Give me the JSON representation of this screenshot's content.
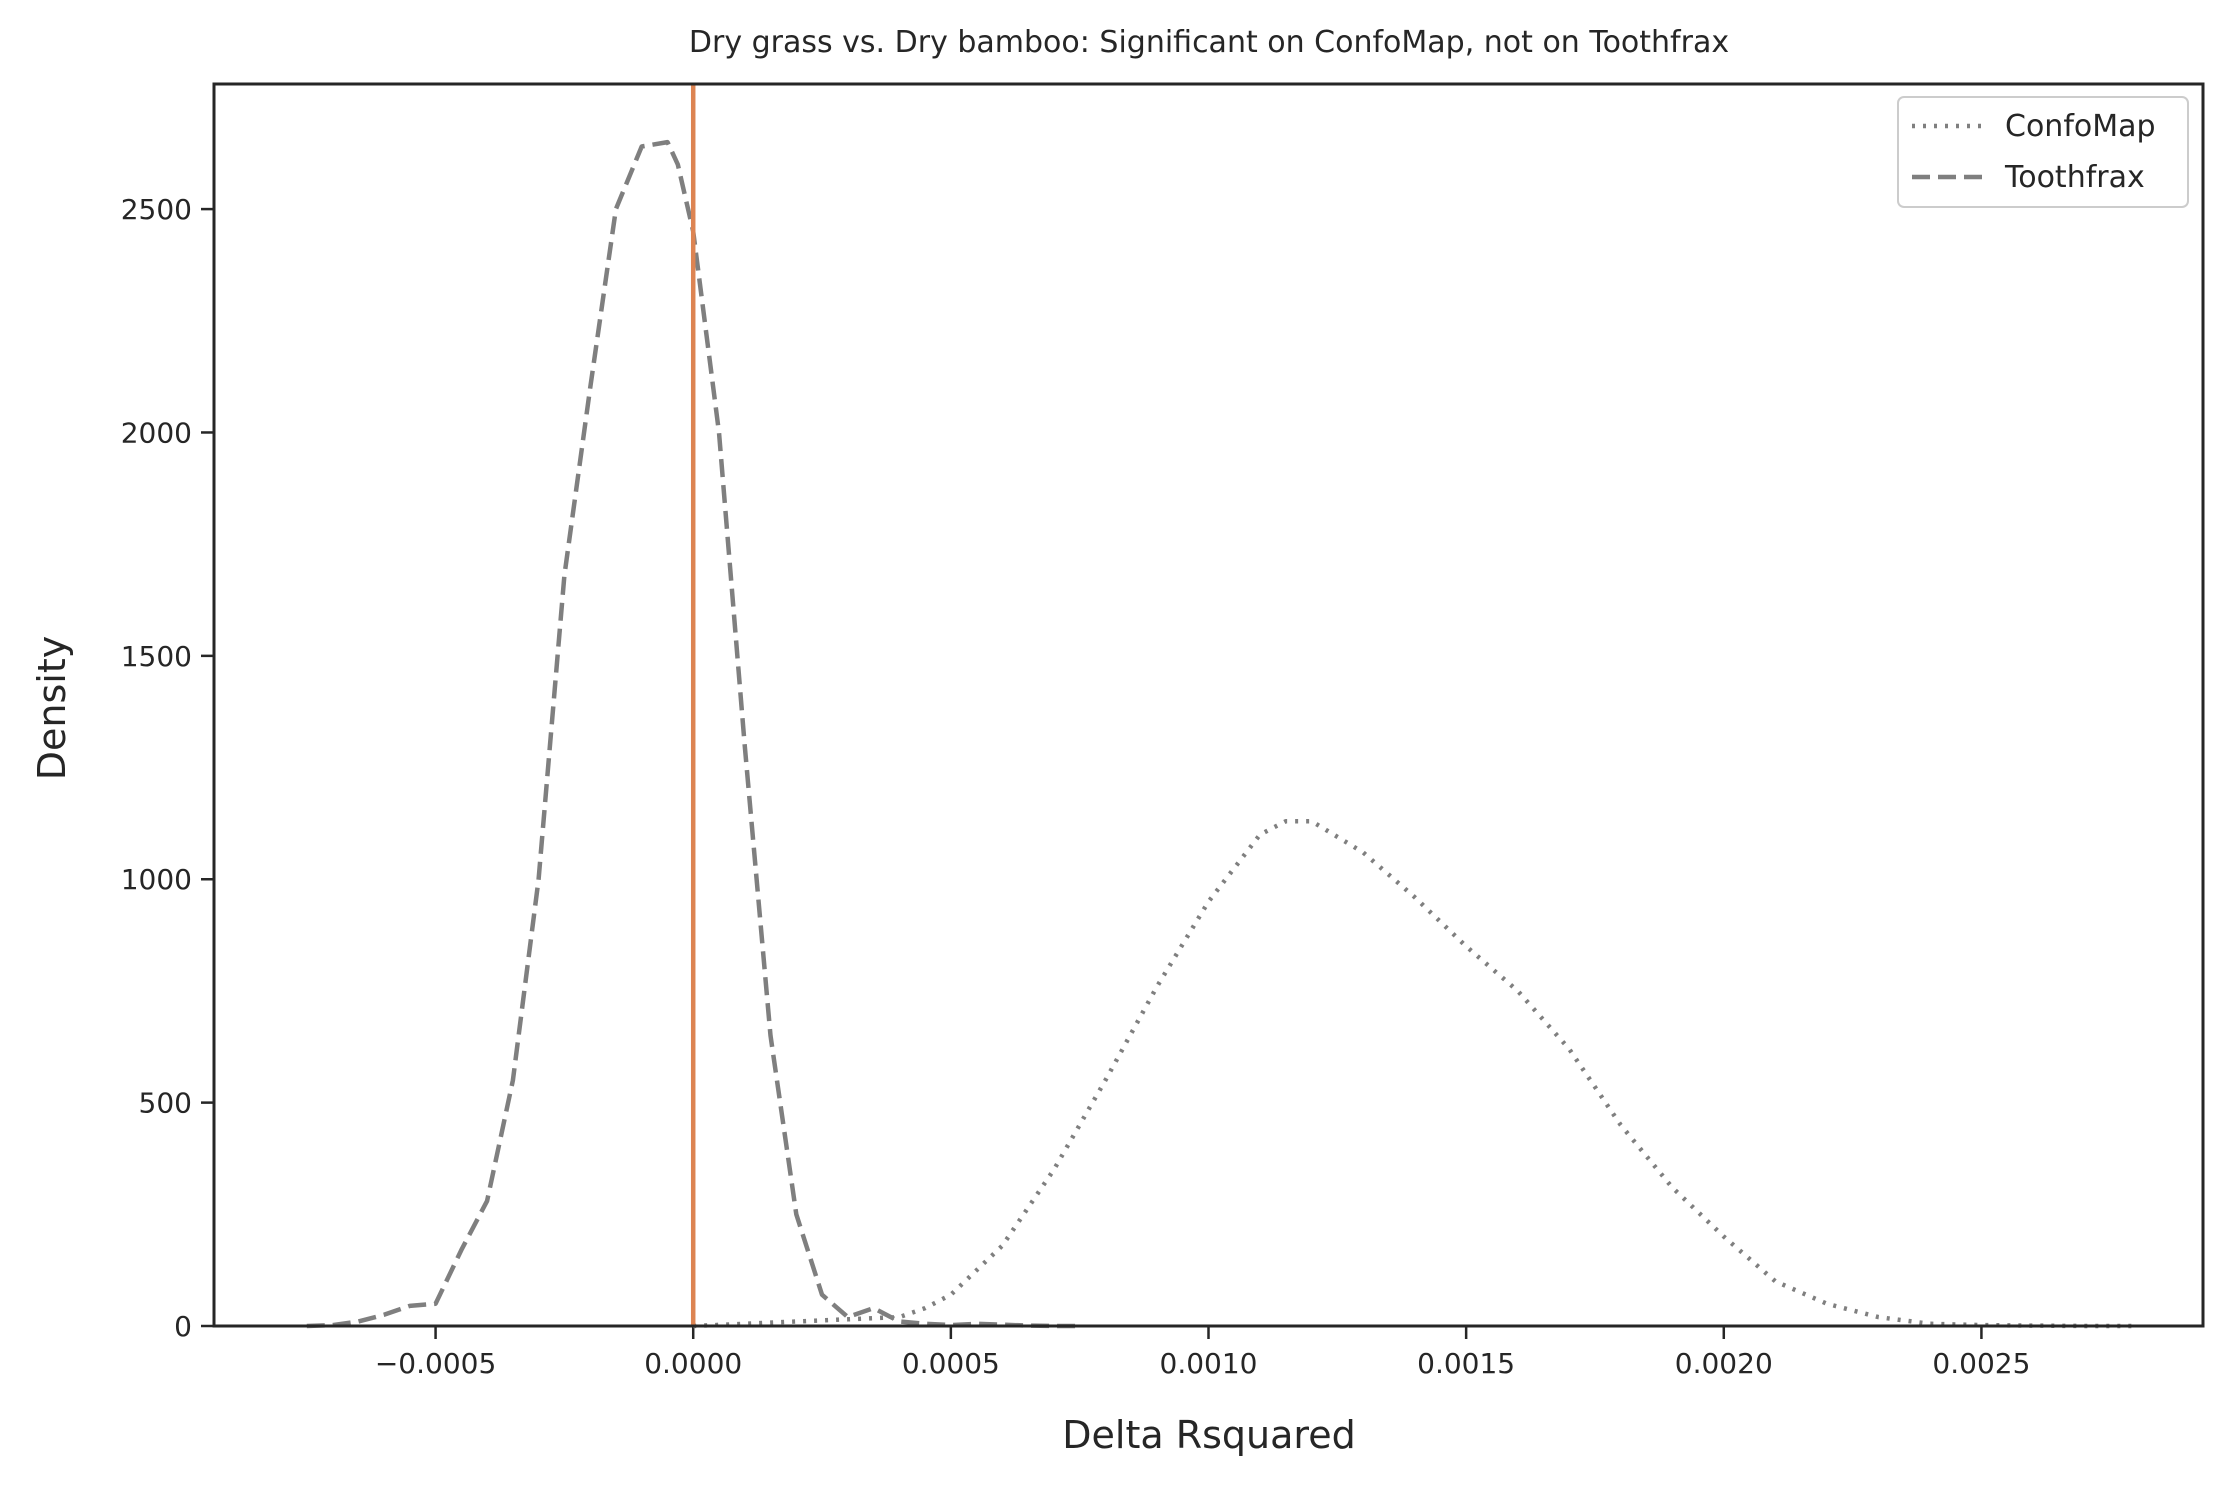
{
  "chart_data": {
    "type": "line",
    "title": "Dry grass vs. Dry bamboo: Significant on ConfoMap, not on Toothfrax",
    "xlabel": "Delta Rsquared",
    "ylabel": "Density",
    "xlim": [
      -0.00093,
      0.00293
    ],
    "ylim": [
      0,
      2780
    ],
    "x_ticks": [
      -0.0005,
      0.0,
      0.0005,
      0.001,
      0.0015,
      0.002,
      0.0025
    ],
    "x_tick_labels": [
      "−0.0005",
      "0.0000",
      "0.0005",
      "0.0010",
      "0.0015",
      "0.0020",
      "0.0025"
    ],
    "y_ticks": [
      0,
      500,
      1000,
      1500,
      2000,
      2500
    ],
    "y_tick_labels": [
      "0",
      "500",
      "1000",
      "1500",
      "2000",
      "2500"
    ],
    "grid": false,
    "legend_position": "top-right",
    "vline": {
      "x": 0.0,
      "color": "#dd8452"
    },
    "series": [
      {
        "name": "ConfoMap",
        "style": "dotted",
        "color": "#7f7f7f",
        "x": [
          0.0,
          0.0001,
          0.0002,
          0.0003,
          0.0004,
          0.00045,
          0.0005,
          0.0006,
          0.0007,
          0.0008,
          0.0009,
          0.001,
          0.0011,
          0.00115,
          0.0012,
          0.0013,
          0.0014,
          0.0015,
          0.0016,
          0.0017,
          0.0018,
          0.0019,
          0.002,
          0.0021,
          0.0022,
          0.0023,
          0.0024,
          0.0025,
          0.0026,
          0.0027,
          0.0028
        ],
        "y": [
          0,
          5,
          10,
          15,
          20,
          40,
          70,
          180,
          350,
          550,
          760,
          950,
          1100,
          1130,
          1130,
          1060,
          960,
          850,
          750,
          620,
          450,
          310,
          200,
          100,
          50,
          20,
          5,
          2,
          1,
          0,
          0
        ]
      },
      {
        "name": "Toothfrax",
        "style": "dashed",
        "color": "#7f7f7f",
        "x": [
          -0.00075,
          -0.0007,
          -0.00065,
          -0.0006,
          -0.00055,
          -0.0005,
          -0.00045,
          -0.0004,
          -0.00035,
          -0.0003,
          -0.00025,
          -0.0002,
          -0.00015,
          -0.0001,
          -5e-05,
          -3e-05,
          0.0,
          5e-05,
          0.0001,
          0.00015,
          0.0002,
          0.00025,
          0.0003,
          0.00035,
          0.0004,
          0.00045,
          0.0005,
          0.00055,
          0.0006,
          0.00065,
          0.0007,
          0.00075
        ],
        "y": [
          0,
          2,
          10,
          25,
          45,
          50,
          170,
          280,
          550,
          1000,
          1680,
          2100,
          2500,
          2640,
          2650,
          2600,
          2450,
          2000,
          1300,
          650,
          250,
          70,
          20,
          40,
          10,
          5,
          2,
          5,
          3,
          1,
          0,
          0
        ]
      }
    ]
  }
}
